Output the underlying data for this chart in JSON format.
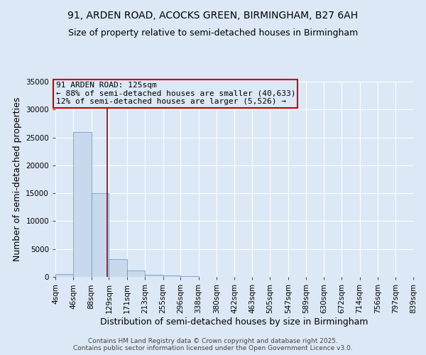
{
  "title_line1": "91, ARDEN ROAD, ACOCKS GREEN, BIRMINGHAM, B27 6AH",
  "title_line2": "Size of property relative to semi-detached houses in Birmingham",
  "xlabel": "Distribution of semi-detached houses by size in Birmingham",
  "ylabel": "Number of semi-detached properties",
  "bin_edges": [
    4,
    46,
    88,
    129,
    171,
    213,
    255,
    296,
    338,
    380,
    422,
    463,
    505,
    547,
    589,
    630,
    672,
    714,
    756,
    797,
    839
  ],
  "bar_heights": [
    500,
    26000,
    15000,
    3200,
    1100,
    400,
    200,
    80,
    30,
    15,
    8,
    5,
    3,
    2,
    1,
    1,
    0,
    0,
    0,
    0
  ],
  "bar_color": "#c8d9ee",
  "bar_edge_color": "#6090c8",
  "property_line_x": 125,
  "property_line_color": "#990000",
  "annotation_line1": "91 ARDEN ROAD: 125sqm",
  "annotation_line2": "← 88% of semi-detached houses are smaller (40,633)",
  "annotation_line3": "12% of semi-detached houses are larger (5,526) →",
  "annotation_box_color": "#cc0000",
  "ylim": [
    0,
    35000
  ],
  "yticks": [
    0,
    5000,
    10000,
    15000,
    20000,
    25000,
    30000,
    35000
  ],
  "background_color": "#dce8f5",
  "plot_bg_color": "#dce8f5",
  "grid_color": "#ffffff",
  "footer_line1": "Contains HM Land Registry data © Crown copyright and database right 2025.",
  "footer_line2": "Contains public sector information licensed under the Open Government Licence v3.0.",
  "title_fontsize": 10,
  "subtitle_fontsize": 9,
  "axis_label_fontsize": 9,
  "tick_fontsize": 7.5,
  "annotation_fontsize": 8,
  "footer_fontsize": 6.5
}
